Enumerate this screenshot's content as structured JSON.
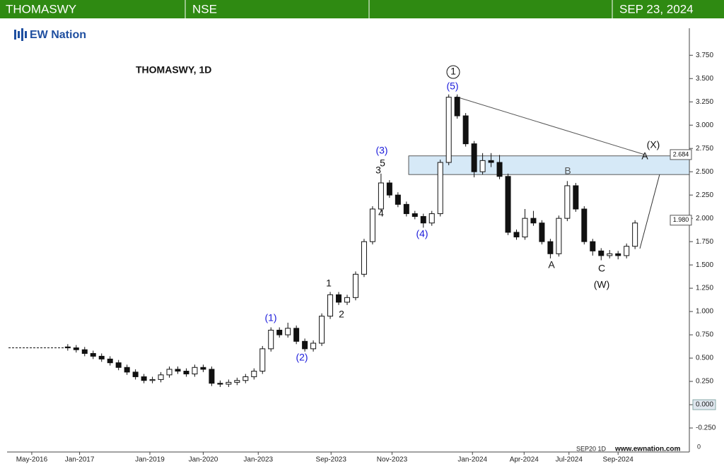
{
  "header": {
    "symbol": "THOMASWY",
    "exchange": "NSE",
    "date": "SEP 23, 2024"
  },
  "logo": "EW Nation",
  "chart_data": {
    "type": "candlestick",
    "title": "THOMASWY, 1D",
    "footer_left": "SEP20 1D",
    "footer_right": "www.ewnation.com",
    "corner_label": "0",
    "xlim": [
      0,
      80
    ],
    "ylim": [
      -0.5,
      4.04
    ],
    "xticks": [
      {
        "value": 2.75,
        "label": "May-2016"
      },
      {
        "value": 8.4,
        "label": "Jan-2017"
      },
      {
        "value": 16.7,
        "label": "Jan-2019"
      },
      {
        "value": 23,
        "label": "Jan-2020"
      },
      {
        "value": 29.5,
        "label": "Jan-2023"
      },
      {
        "value": 38.1,
        "label": "Sep-2023"
      },
      {
        "value": 45.3,
        "label": "Nov-2023"
      },
      {
        "value": 54.8,
        "label": "Jan-2024"
      },
      {
        "value": 60.9,
        "label": "Apr-2024"
      },
      {
        "value": 66.2,
        "label": "Jul-2024"
      },
      {
        "value": 72,
        "label": "Sep-2024"
      }
    ],
    "yticks": [
      {
        "value": 3.75,
        "label": "3.750"
      },
      {
        "value": 3.5,
        "label": "3.500"
      },
      {
        "value": 3.25,
        "label": "3.250"
      },
      {
        "value": 3,
        "label": "3.000"
      },
      {
        "value": 2.75,
        "label": "2.750"
      },
      {
        "value": 2.5,
        "label": "2.500"
      },
      {
        "value": 2.25,
        "label": "2.250"
      },
      {
        "value": 2,
        "label": "2.000"
      },
      {
        "value": 1.75,
        "label": "1.750"
      },
      {
        "value": 1.5,
        "label": "1.500"
      },
      {
        "value": 1.25,
        "label": "1.250"
      },
      {
        "value": 1,
        "label": "1.000"
      },
      {
        "value": 0.75,
        "label": "0.750"
      },
      {
        "value": 0.5,
        "label": "0.500"
      },
      {
        "value": 0.25,
        "label": "0.250"
      },
      {
        "value": 0,
        "label": "0.000"
      },
      {
        "value": -0.25,
        "label": "-0.250"
      }
    ],
    "flat_line": {
      "x": [
        0,
        7
      ],
      "values": [
        0.61,
        0.61
      ]
    },
    "zone": [
      2.47,
      2.67
    ],
    "price_labels": [
      {
        "value": 2.684,
        "label": "2.684"
      },
      {
        "value": 1.98,
        "label": "1.980"
      }
    ],
    "x": [
      7,
      8,
      9,
      10,
      11,
      12,
      13,
      14,
      15,
      16,
      17,
      18,
      19,
      20,
      21,
      22,
      23,
      24,
      25,
      26,
      27,
      28,
      29,
      30,
      31,
      32,
      33,
      34,
      35,
      36,
      37,
      38,
      39,
      40,
      41,
      42,
      43,
      44,
      45,
      46,
      47,
      48,
      49,
      50,
      51,
      52,
      53,
      54,
      55,
      56,
      57,
      58,
      59,
      60,
      61,
      62,
      63,
      64,
      65,
      66,
      67,
      68,
      69,
      70,
      71,
      72,
      73,
      74
    ],
    "open": [
      0.62,
      0.61,
      0.59,
      0.55,
      0.52,
      0.49,
      0.45,
      0.4,
      0.35,
      0.3,
      0.26,
      0.27,
      0.32,
      0.38,
      0.36,
      0.33,
      0.4,
      0.38,
      0.23,
      0.22,
      0.24,
      0.26,
      0.3,
      0.36,
      0.6,
      0.8,
      0.75,
      0.82,
      0.68,
      0.6,
      0.66,
      0.95,
      1.18,
      1.1,
      1.15,
      1.4,
      1.75,
      2.1,
      2.38,
      2.25,
      2.15,
      2.05,
      2.02,
      1.95,
      2.05,
      2.6,
      3.3,
      3.1,
      2.8,
      2.5,
      2.62,
      2.6,
      2.45,
      1.85,
      1.8,
      2.0,
      1.95,
      1.75,
      1.62,
      2.0,
      2.35,
      2.1,
      1.75,
      1.65,
      1.6,
      1.62,
      1.6,
      1.7
    ],
    "high": [
      0.65,
      0.64,
      0.62,
      0.58,
      0.55,
      0.52,
      0.48,
      0.43,
      0.38,
      0.33,
      0.3,
      0.35,
      0.41,
      0.41,
      0.39,
      0.43,
      0.43,
      0.41,
      0.26,
      0.27,
      0.29,
      0.33,
      0.39,
      0.63,
      0.83,
      0.83,
      0.88,
      0.85,
      0.71,
      0.69,
      0.98,
      1.21,
      1.21,
      1.18,
      1.43,
      1.78,
      2.13,
      2.48,
      2.41,
      2.28,
      2.18,
      2.08,
      2.05,
      2.08,
      2.63,
      3.33,
      3.33,
      3.13,
      2.83,
      2.7,
      2.7,
      2.68,
      2.48,
      1.88,
      2.1,
      2.08,
      1.98,
      1.78,
      2.03,
      2.4,
      2.38,
      2.13,
      1.78,
      1.68,
      1.66,
      1.65,
      1.73,
      1.98
    ],
    "low": [
      0.58,
      0.56,
      0.52,
      0.49,
      0.46,
      0.42,
      0.37,
      0.32,
      0.27,
      0.23,
      0.23,
      0.24,
      0.29,
      0.33,
      0.3,
      0.3,
      0.35,
      0.2,
      0.19,
      0.19,
      0.21,
      0.23,
      0.27,
      0.33,
      0.57,
      0.72,
      0.72,
      0.65,
      0.57,
      0.57,
      0.63,
      0.92,
      1.07,
      1.07,
      1.12,
      1.37,
      1.72,
      2.07,
      2.22,
      2.12,
      2.02,
      1.99,
      1.9,
      1.92,
      2.02,
      2.57,
      3.07,
      2.77,
      2.44,
      2.47,
      2.55,
      2.42,
      1.82,
      1.77,
      1.77,
      1.92,
      1.72,
      1.57,
      1.59,
      1.97,
      2.07,
      1.72,
      1.6,
      1.55,
      1.57,
      1.56,
      1.57,
      1.67
    ],
    "close": [
      0.61,
      0.59,
      0.55,
      0.52,
      0.49,
      0.45,
      0.4,
      0.35,
      0.3,
      0.26,
      0.27,
      0.32,
      0.38,
      0.36,
      0.33,
      0.4,
      0.38,
      0.23,
      0.22,
      0.24,
      0.26,
      0.3,
      0.36,
      0.6,
      0.8,
      0.75,
      0.82,
      0.68,
      0.6,
      0.66,
      0.95,
      1.18,
      1.1,
      1.15,
      1.4,
      1.75,
      2.1,
      2.38,
      2.25,
      2.15,
      2.05,
      2.02,
      1.95,
      2.05,
      2.6,
      3.3,
      3.1,
      2.8,
      2.5,
      2.62,
      2.6,
      2.45,
      1.85,
      1.8,
      2.0,
      1.95,
      1.75,
      1.62,
      2.0,
      2.35,
      2.1,
      1.75,
      1.65,
      1.6,
      1.62,
      1.6,
      1.7,
      1.95
    ],
    "wave_labels": [
      {
        "text": "(1)",
        "color": "#1a1adb"
      },
      {
        "text": "(2)",
        "color": "#1a1adb"
      },
      {
        "text": "(3)",
        "color": "#1a1adb"
      },
      {
        "text": "(4)",
        "color": "#1a1adb"
      },
      {
        "text": "(5)",
        "color": "#1a1adb"
      },
      {
        "text": "1",
        "color": "#111"
      },
      {
        "text": "2",
        "color": "#111"
      },
      {
        "text": "3",
        "color": "#111"
      },
      {
        "text": "4",
        "color": "#111"
      },
      {
        "text": "5",
        "color": "#111"
      },
      {
        "text": "A",
        "color": "#111"
      },
      {
        "text": "B",
        "color": "#555"
      },
      {
        "text": "C",
        "color": "#111"
      },
      {
        "text": "(W)",
        "color": "#111"
      },
      {
        "text": "(X)",
        "color": "#111"
      },
      {
        "text": "A",
        "color": "#111"
      },
      {
        "text": "1",
        "color": "#111"
      }
    ]
  }
}
